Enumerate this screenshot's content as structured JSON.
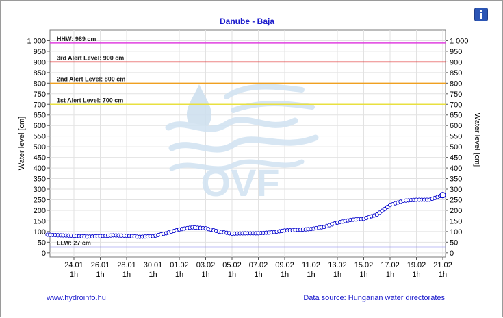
{
  "chart_data": {
    "type": "line",
    "title": "Danube - Baja",
    "ylabel": "Water level [cm]",
    "ylabel_right": "Water level [cm]",
    "ylim": [
      -20,
      1050
    ],
    "yticks": [
      "0",
      "50",
      "100",
      "150",
      "200",
      "250",
      "300",
      "350",
      "400",
      "450",
      "500",
      "550",
      "600",
      "650",
      "700",
      "750",
      "800",
      "850",
      "900",
      "950",
      "1 000"
    ],
    "xticks": [
      {
        "date": "24.01",
        "hour": "1h"
      },
      {
        "date": "26.01",
        "hour": "1h"
      },
      {
        "date": "28.01",
        "hour": "1h"
      },
      {
        "date": "30.01",
        "hour": "1h"
      },
      {
        "date": "01.02",
        "hour": "1h"
      },
      {
        "date": "03.02",
        "hour": "1h"
      },
      {
        "date": "05.02",
        "hour": "1h"
      },
      {
        "date": "07.02",
        "hour": "1h"
      },
      {
        "date": "09.02",
        "hour": "1h"
      },
      {
        "date": "11.02",
        "hour": "1h"
      },
      {
        "date": "13.02",
        "hour": "1h"
      },
      {
        "date": "15.02",
        "hour": "1h"
      },
      {
        "date": "17.02",
        "hour": "1h"
      },
      {
        "date": "19.02",
        "hour": "1h"
      },
      {
        "date": "21.02",
        "hour": "1h"
      }
    ],
    "reference_lines": [
      {
        "label": "HHW: 989 cm",
        "value": 989,
        "color": "#e040e0"
      },
      {
        "label": "3rd Alert Level: 900 cm",
        "value": 900,
        "color": "#dd1111"
      },
      {
        "label": "2nd Alert Level: 800 cm",
        "value": 800,
        "color": "#f0a020"
      },
      {
        "label": "1st Alert Level: 700 cm",
        "value": 700,
        "color": "#e8e040"
      },
      {
        "label": "LLW: 27 cm",
        "value": 27,
        "color": "#8080ee"
      }
    ],
    "series": [
      {
        "color": "#0000cc",
        "x": [
          "22.01",
          "23.01",
          "24.01",
          "25.01",
          "26.01",
          "27.01",
          "28.01",
          "29.01",
          "30.01",
          "31.01",
          "01.02",
          "02.02",
          "03.02",
          "04.02",
          "05.02",
          "06.02",
          "07.02",
          "08.02",
          "09.02",
          "10.02",
          "11.02",
          "12.02",
          "13.02",
          "14.02",
          "15.02",
          "16.02",
          "17.02",
          "18.02",
          "19.02",
          "20.02",
          "21.02"
        ],
        "values": [
          85,
          82,
          80,
          76,
          78,
          82,
          80,
          75,
          78,
          92,
          110,
          120,
          115,
          100,
          90,
          92,
          92,
          96,
          105,
          108,
          112,
          122,
          142,
          155,
          160,
          180,
          225,
          245,
          250,
          250,
          272
        ]
      }
    ],
    "grid": true
  },
  "watermark": "OVF",
  "footer": {
    "left": "www.hydroinfo.hu",
    "right": "Data source: Hungarian water directorates"
  },
  "info_icon": "info-icon",
  "colors": {
    "title": "#1a1acc",
    "plot_bg": "#ffffff",
    "grid": "#dcdcdc",
    "series": "#0000cc"
  }
}
